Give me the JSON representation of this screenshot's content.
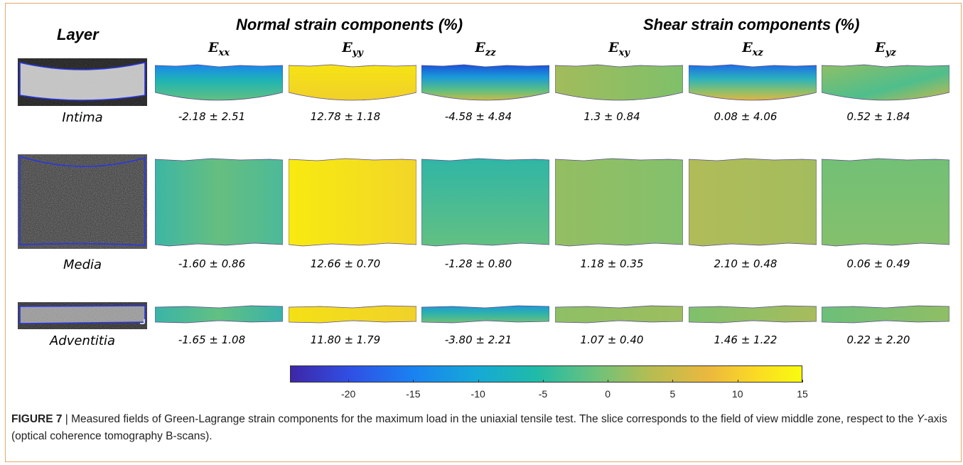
{
  "headers": {
    "layer": "Layer",
    "normal": "Normal strain components (%)",
    "shear": "Shear strain components (%)"
  },
  "components": [
    {
      "letter": "E",
      "sub": "xx"
    },
    {
      "letter": "E",
      "sub": "yy"
    },
    {
      "letter": "E",
      "sub": "zz"
    },
    {
      "letter": "E",
      "sub": "xy"
    },
    {
      "letter": "E",
      "sub": "xz"
    },
    {
      "letter": "E",
      "sub": "yz"
    }
  ],
  "layers": [
    {
      "name": "Intima",
      "stats": [
        "-2.18 ± 2.51",
        "12.78 ± 1.18",
        "-4.58 ± 4.84",
        "1.3 ± 0.84",
        "0.08 ± 4.06",
        "0.52 ± 1.84"
      ]
    },
    {
      "name": "Media",
      "stats": [
        "-1.60 ± 0.86",
        "12.66 ± 0.70",
        "-1.28 ± 0.80",
        "1.18 ± 0.35",
        "2.10 ± 0.48",
        "0.06 ± 0.49"
      ]
    },
    {
      "name": "Adventitia",
      "stats": [
        "-1.65 ± 1.08",
        "11.80 ± 1.79",
        "-3.80 ± 2.21",
        "1.07 ± 0.40",
        "1.46 ± 1.22",
        "0.22 ± 2.20"
      ]
    }
  ],
  "colorbar": {
    "ticks": [
      "-20",
      "-15",
      "-10",
      "-5",
      "0",
      "5",
      "10",
      "15"
    ],
    "colors": {
      "min": "#3e26a8",
      "mid": "#1fbba8",
      "max": "#f9fb0e"
    }
  },
  "caption": {
    "label": "FIGURE 7",
    "text": " | Measured fields of Green-Lagrange strain components for the maximum load in the uniaxial tensile test. The slice corresponds to the field of view middle zone, respect to the ",
    "axis": "Y",
    "text2": "-axis (optical coherence tomography B-scans)."
  }
}
